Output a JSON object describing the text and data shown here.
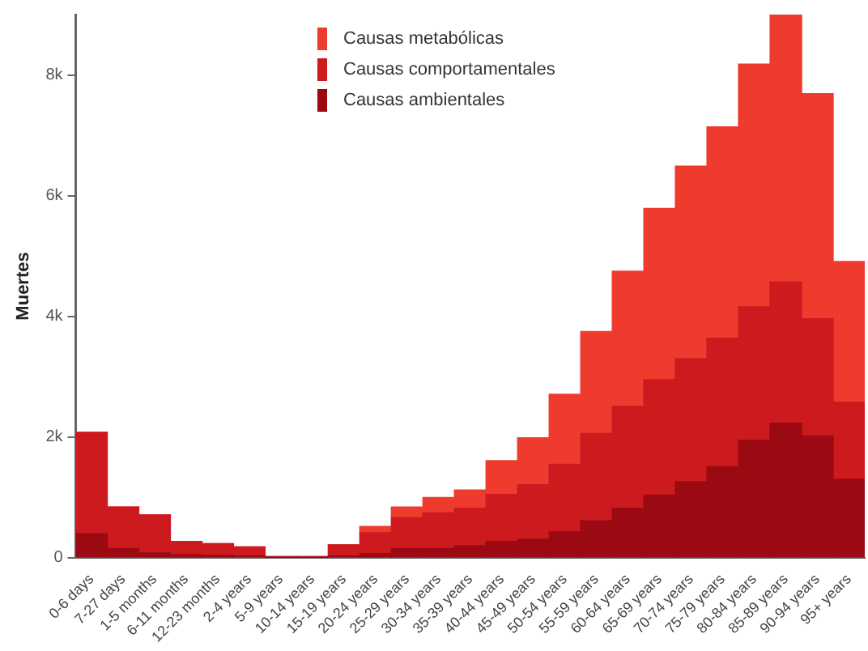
{
  "chart_data": {
    "type": "bar",
    "stacked": true,
    "ylabel": "Muertes",
    "legend": "top",
    "grid": false,
    "categories": [
      "0-6 days",
      "7-27 days",
      "1-5 months",
      "6-11 months",
      "12-23 months",
      "2-4 years",
      "5-9 years",
      "10-14 years",
      "15-19 years",
      "20-24 years",
      "25-29 years",
      "30-34 years",
      "35-39 years",
      "40-44 years",
      "45-49 years",
      "50-54 years",
      "55-59 years",
      "60-64 years",
      "65-69 years",
      "70-74 years",
      "75-79 years",
      "80-84 years",
      "85-89 years",
      "90-94 years",
      "95+ years"
    ],
    "ylim": [
      0,
      9000
    ],
    "yticks": [
      {
        "value": 0,
        "label": "0"
      },
      {
        "value": 2000,
        "label": "2k"
      },
      {
        "value": 4000,
        "label": "4k"
      },
      {
        "value": 6000,
        "label": "6k"
      },
      {
        "value": 8000,
        "label": "8k"
      }
    ],
    "series": [
      {
        "name": "Causas ambientales",
        "color": "#9b0a12",
        "values": [
          400,
          155,
          80,
          50,
          40,
          30,
          5,
          5,
          30,
          70,
          155,
          155,
          200,
          270,
          310,
          430,
          615,
          820,
          1040,
          1260,
          1510,
          1950,
          2230,
          2020,
          1300
        ]
      },
      {
        "name": "Causas comportamentales",
        "color": "#cc1a1f",
        "values": [
          1680,
          685,
          630,
          220,
          195,
          150,
          15,
          15,
          185,
          345,
          510,
          590,
          620,
          780,
          900,
          1120,
          1445,
          1690,
          1910,
          2040,
          2130,
          2210,
          2340,
          1940,
          1280
        ]
      },
      {
        "name": "Causas metabólicas",
        "color": "#ee3b2e",
        "values": [
          0,
          0,
          0,
          0,
          0,
          0,
          0,
          0,
          0,
          105,
          175,
          255,
          305,
          560,
          780,
          1160,
          1690,
          2240,
          2840,
          3190,
          3500,
          4020,
          4420,
          3730,
          2330
        ]
      }
    ]
  }
}
